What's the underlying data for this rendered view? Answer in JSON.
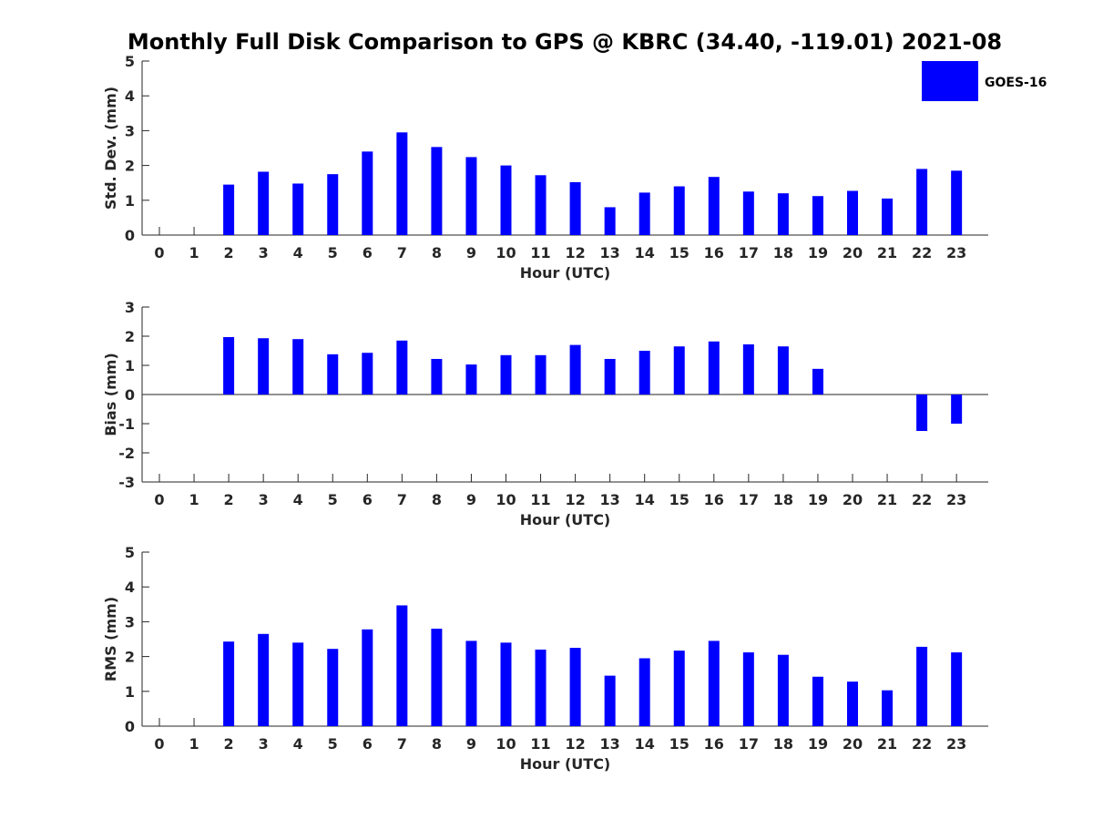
{
  "title": "Monthly Full Disk Comparison to GPS @ KBRC (34.40, -119.01) 2021-08",
  "legend": {
    "label": "GOES-16",
    "color": "#0000ff",
    "placement": "top-right"
  },
  "chart_data": [
    {
      "type": "bar",
      "xlabel": "Hour (UTC)",
      "ylabel": "Std. Dev. (mm)",
      "ylim": [
        0,
        5
      ],
      "yticks": [
        0,
        1,
        2,
        3,
        4,
        5
      ],
      "categories": [
        "0",
        "1",
        "2",
        "3",
        "4",
        "5",
        "6",
        "7",
        "8",
        "9",
        "10",
        "11",
        "12",
        "13",
        "14",
        "15",
        "16",
        "17",
        "18",
        "19",
        "20",
        "21",
        "22",
        "23"
      ],
      "series": [
        {
          "name": "GOES-16",
          "values": [
            null,
            null,
            1.45,
            1.82,
            1.48,
            1.75,
            2.4,
            2.95,
            2.53,
            2.24,
            2.0,
            1.72,
            1.52,
            0.8,
            1.22,
            1.4,
            1.67,
            1.25,
            1.2,
            1.12,
            1.27,
            1.05,
            1.9,
            1.85
          ]
        }
      ],
      "grid": false
    },
    {
      "type": "bar",
      "xlabel": "Hour (UTC)",
      "ylabel": "Bias (mm)",
      "ylim": [
        -3,
        3
      ],
      "yticks": [
        -3,
        -2,
        -1,
        0,
        1,
        2,
        3
      ],
      "categories": [
        "0",
        "1",
        "2",
        "3",
        "4",
        "5",
        "6",
        "7",
        "8",
        "9",
        "10",
        "11",
        "12",
        "13",
        "14",
        "15",
        "16",
        "17",
        "18",
        "19",
        "20",
        "21",
        "22",
        "23"
      ],
      "series": [
        {
          "name": "GOES-16",
          "values": [
            null,
            null,
            1.97,
            1.93,
            1.9,
            1.38,
            1.43,
            1.85,
            1.22,
            1.03,
            1.35,
            1.35,
            1.7,
            1.22,
            1.5,
            1.65,
            1.82,
            1.72,
            1.65,
            0.88,
            null,
            null,
            -1.25,
            -1.0
          ]
        }
      ],
      "grid": false
    },
    {
      "type": "bar",
      "xlabel": "Hour (UTC)",
      "ylabel": "RMS (mm)",
      "ylim": [
        0,
        5
      ],
      "yticks": [
        0,
        1,
        2,
        3,
        4,
        5
      ],
      "categories": [
        "0",
        "1",
        "2",
        "3",
        "4",
        "5",
        "6",
        "7",
        "8",
        "9",
        "10",
        "11",
        "12",
        "13",
        "14",
        "15",
        "16",
        "17",
        "18",
        "19",
        "20",
        "21",
        "22",
        "23"
      ],
      "series": [
        {
          "name": "GOES-16",
          "values": [
            null,
            null,
            2.43,
            2.65,
            2.4,
            2.22,
            2.78,
            3.47,
            2.8,
            2.45,
            2.4,
            2.2,
            2.25,
            1.45,
            1.95,
            2.17,
            2.45,
            2.12,
            2.05,
            1.42,
            1.28,
            1.03,
            2.28,
            2.12
          ]
        }
      ],
      "grid": false
    }
  ]
}
